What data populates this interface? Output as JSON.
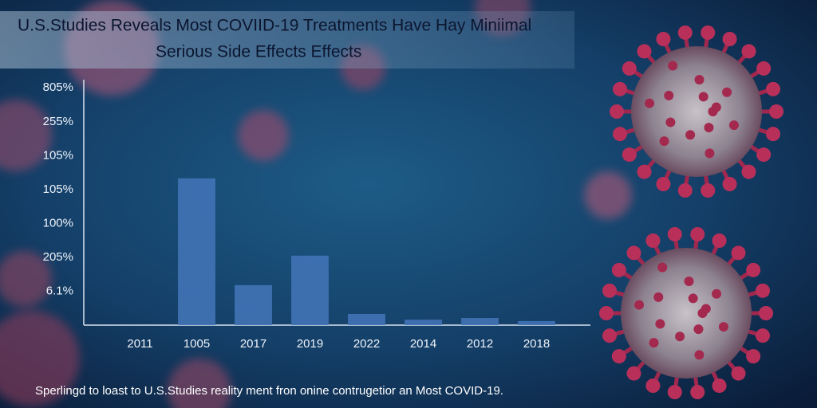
{
  "chart_data": {
    "type": "bar",
    "title_lines": [
      "U.S.Studies Reveals Most COVIID-19 Treatments Have Hay Miniimal",
      "Serious Side Effects Effects"
    ],
    "caption": "Sperlingd to loast to U.S.Studies reality ment fron onine contrugetior an Most COVID-19.",
    "categories": [
      "2011",
      "1005",
      "2017",
      "2019",
      "2022",
      "2014",
      "2012",
      "2018"
    ],
    "values": [
      0,
      4.33,
      1.18,
      2.05,
      0.33,
      0.16,
      0.21,
      0.12
    ],
    "color": "#4173b6",
    "ylim": [
      0,
      7.5
    ],
    "yticks": [
      {
        "value": 1,
        "label": "6.1%"
      },
      {
        "value": 2,
        "label": "205%"
      },
      {
        "value": 3,
        "label": "100%"
      },
      {
        "value": 4,
        "label": "105%"
      },
      {
        "value": 5,
        "label": "105%"
      },
      {
        "value": 6,
        "label": "255%"
      },
      {
        "value": 7,
        "label": "805%"
      }
    ]
  }
}
